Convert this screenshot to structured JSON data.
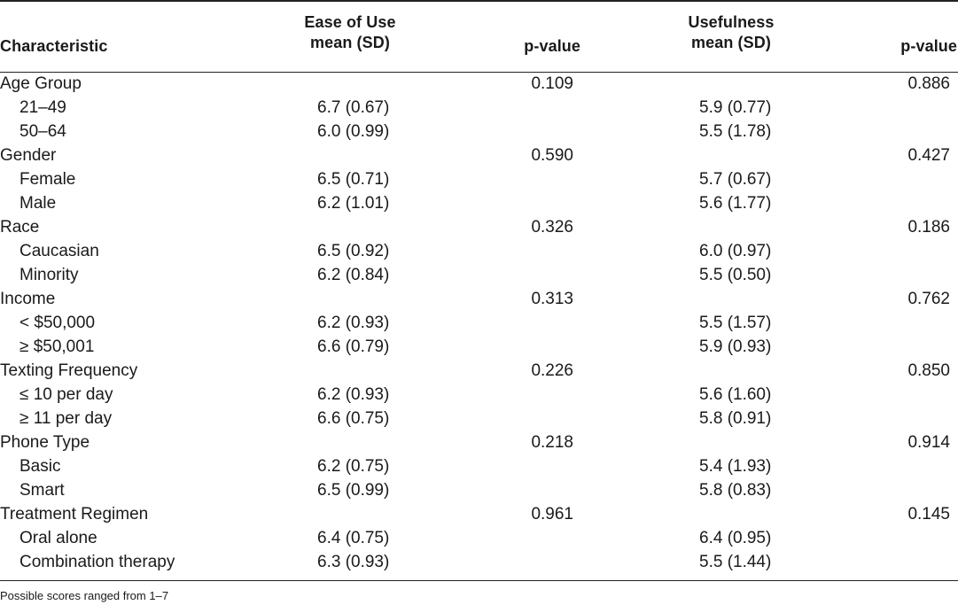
{
  "table": {
    "headers": {
      "characteristic": "Characteristic",
      "ease_of_use": [
        "Ease of Use",
        "mean (SD)"
      ],
      "p_value_1": "p-value",
      "usefulness": [
        "Usefulness",
        "mean (SD)"
      ],
      "p_value_2": "p-value"
    },
    "rows": [
      {
        "label": "Age Group",
        "sub": false,
        "ease": "",
        "p1": "0.109",
        "use": "",
        "p2": "0.886"
      },
      {
        "label": "21–49",
        "sub": true,
        "ease": "6.7 (0.67)",
        "p1": "",
        "use": "5.9 (0.77)",
        "p2": ""
      },
      {
        "label": "50–64",
        "sub": true,
        "ease": "6.0 (0.99)",
        "p1": "",
        "use": "5.5 (1.78)",
        "p2": ""
      },
      {
        "label": "Gender",
        "sub": false,
        "ease": "",
        "p1": "0.590",
        "use": "",
        "p2": "0.427"
      },
      {
        "label": "Female",
        "sub": true,
        "ease": "6.5 (0.71)",
        "p1": "",
        "use": "5.7 (0.67)",
        "p2": ""
      },
      {
        "label": "Male",
        "sub": true,
        "ease": "6.2 (1.01)",
        "p1": "",
        "use": "5.6 (1.77)",
        "p2": ""
      },
      {
        "label": "Race",
        "sub": false,
        "ease": "",
        "p1": "0.326",
        "use": "",
        "p2": "0.186"
      },
      {
        "label": "Caucasian",
        "sub": true,
        "ease": "6.5 (0.92)",
        "p1": "",
        "use": "6.0 (0.97)",
        "p2": ""
      },
      {
        "label": "Minority",
        "sub": true,
        "ease": "6.2 (0.84)",
        "p1": "",
        "use": "5.5 (0.50)",
        "p2": ""
      },
      {
        "label": "Income",
        "sub": false,
        "ease": "",
        "p1": "0.313",
        "use": "",
        "p2": "0.762"
      },
      {
        "label": "< $50,000",
        "sub": true,
        "ease": "6.2 (0.93)",
        "p1": "",
        "use": "5.5 (1.57)",
        "p2": ""
      },
      {
        "label": "≥ $50,001",
        "sub": true,
        "ease": "6.6 (0.79)",
        "p1": "",
        "use": "5.9 (0.93)",
        "p2": ""
      },
      {
        "label": "Texting Frequency",
        "sub": false,
        "ease": "",
        "p1": "0.226",
        "use": "",
        "p2": "0.850"
      },
      {
        "label": "≤ 10 per day",
        "sub": true,
        "ease": "6.2 (0.93)",
        "p1": "",
        "use": "5.6 (1.60)",
        "p2": ""
      },
      {
        "label": "≥ 11 per day",
        "sub": true,
        "ease": "6.6 (0.75)",
        "p1": "",
        "use": "5.8 (0.91)",
        "p2": ""
      },
      {
        "label": "Phone Type",
        "sub": false,
        "ease": "",
        "p1": "0.218",
        "use": "",
        "p2": "0.914"
      },
      {
        "label": "Basic",
        "sub": true,
        "ease": "6.2 (0.75)",
        "p1": "",
        "use": "5.4 (1.93)",
        "p2": ""
      },
      {
        "label": "Smart",
        "sub": true,
        "ease": "6.5 (0.99)",
        "p1": "",
        "use": "5.8 (0.83)",
        "p2": ""
      },
      {
        "label": "Treatment Regimen",
        "sub": false,
        "ease": "",
        "p1": "0.961",
        "use": "",
        "p2": "0.145"
      },
      {
        "label": "Oral alone",
        "sub": true,
        "ease": "6.4 (0.75)",
        "p1": "",
        "use": "6.4 (0.95)",
        "p2": ""
      },
      {
        "label": "Combination therapy",
        "sub": true,
        "ease": "6.3 (0.93)",
        "p1": "",
        "use": "5.5 (1.44)",
        "p2": ""
      }
    ]
  },
  "footnote": "Possible scores ranged from 1–7"
}
